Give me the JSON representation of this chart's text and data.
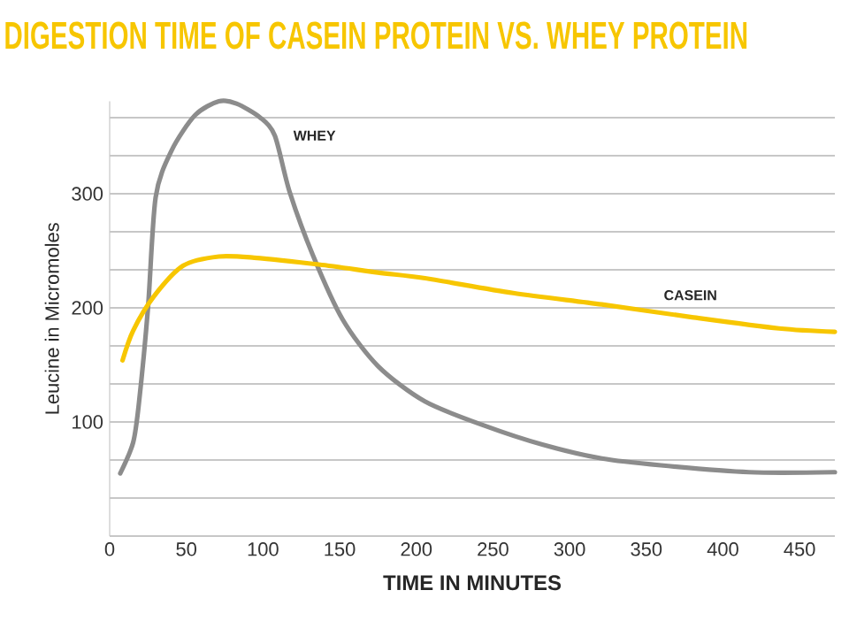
{
  "chart_data": {
    "type": "line",
    "title": "DIGESTION TIME OF CASEIN PROTEIN VS. WHEY PROTEIN",
    "xlabel": "TIME IN MINUTES",
    "ylabel": "Leucine in Micromoles",
    "x": [
      6.9,
      15.3,
      19.2,
      25,
      30,
      40.4,
      55.8,
      71.2,
      82.7,
      98,
      107.7,
      117.3,
      132.6,
      151.9,
      175,
      205.6,
      244,
      282.7,
      321,
      359.5,
      417,
      473
    ],
    "series": [
      {
        "name": "WHEY",
        "color": "#8c8c8c",
        "values": [
          55,
          82,
          118,
          200,
          297,
          338,
          369,
          381,
          379,
          367,
          351,
          302,
          246,
          190,
          149,
          118,
          97,
          80,
          68,
          62,
          56,
          56
        ]
      },
      {
        "name": "CASEIN",
        "color": "#f7c600",
        "x": [
          8.4,
          15.3,
          28.8,
          48,
          71.2,
          94.2,
          136.5,
          175,
          205.7,
          263.2,
          321,
          378.8,
          436.5,
          473
        ],
        "values": [
          154,
          180,
          210,
          237,
          245,
          244,
          238,
          231,
          226,
          213,
          203,
          192,
          182,
          179
        ]
      }
    ],
    "xlim": [
      0,
      473
    ],
    "ylim": [
      0,
      381
    ],
    "xticks": [
      0,
      50,
      100,
      150,
      200,
      250,
      300,
      350,
      400,
      450
    ],
    "yticks": [
      {
        "value": 0,
        "label": null
      },
      {
        "value": 33.3,
        "label": null
      },
      {
        "value": 66.7,
        "label": null
      },
      100,
      {
        "value": 133.3,
        "label": null
      },
      {
        "value": 166.7,
        "label": null
      },
      200,
      {
        "value": 233.3,
        "label": null
      },
      {
        "value": 266.7,
        "label": null
      },
      300,
      {
        "value": 333.3,
        "label": null
      },
      {
        "value": 366.7,
        "label": null
      }
    ],
    "grid": "y",
    "legend": false,
    "marker": "none",
    "line_style": "solid"
  }
}
